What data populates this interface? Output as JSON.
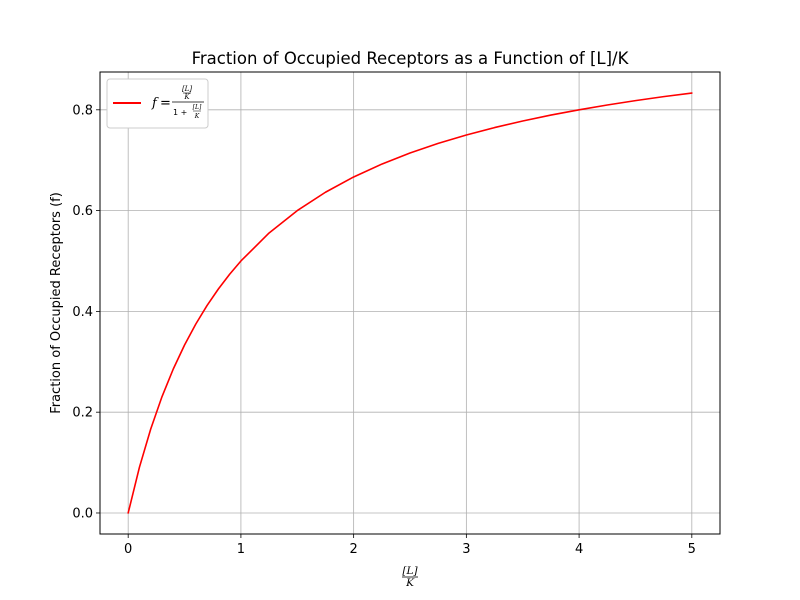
{
  "chart_data": {
    "type": "line",
    "title": "Fraction of Occupied Receptors as a Function of [L]/K",
    "xlabel": {
      "numerator": "[L]",
      "denominator": "K"
    },
    "ylabel": "Fraction of Occupied Receptors (f)",
    "xlim": [
      -0.25,
      5.25
    ],
    "ylim": [
      -0.0417,
      0.875
    ],
    "x_ticks": [
      0,
      1,
      2,
      3,
      4,
      5
    ],
    "x_tick_labels": [
      "0",
      "1",
      "2",
      "3",
      "4",
      "5"
    ],
    "y_ticks": [
      0.0,
      0.2,
      0.4,
      0.6,
      0.8
    ],
    "y_tick_labels": [
      "0.0",
      "0.2",
      "0.4",
      "0.6",
      "0.8"
    ],
    "grid": true,
    "legend_position": "upper-left",
    "series": [
      {
        "name": "f = ([L]/K) / (1 + [L]/K)",
        "legend": {
          "lhs": "f",
          "eq": "=",
          "num_num": "[L]",
          "num_den": "K",
          "den_one": "1 +",
          "den_num": "[L]",
          "den_den": "K"
        },
        "color": "#ff0000",
        "x": [
          0,
          0.1,
          0.2,
          0.3,
          0.4,
          0.5,
          0.6,
          0.7,
          0.8,
          0.9,
          1.0,
          1.25,
          1.5,
          1.75,
          2.0,
          2.25,
          2.5,
          2.75,
          3.0,
          3.25,
          3.5,
          3.75,
          4.0,
          4.25,
          4.5,
          4.75,
          5.0
        ],
        "y": [
          0.0,
          0.0909,
          0.1667,
          0.2308,
          0.2857,
          0.3333,
          0.375,
          0.4118,
          0.4444,
          0.4737,
          0.5,
          0.5556,
          0.6,
          0.6364,
          0.6667,
          0.6923,
          0.7143,
          0.7333,
          0.75,
          0.7647,
          0.7778,
          0.7895,
          0.8,
          0.8095,
          0.8182,
          0.8261,
          0.8333
        ]
      }
    ]
  }
}
